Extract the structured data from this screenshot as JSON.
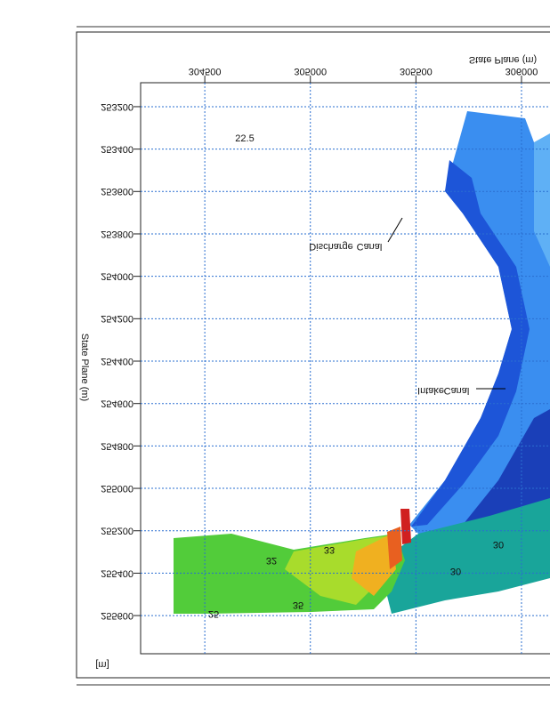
{
  "chart_data": {
    "type": "map",
    "x_label": "State Plane (m)",
    "y_label": "State Plane (m)",
    "unit_label": "[m]",
    "xlim": [
      304196,
      306135
    ],
    "xticks": [
      304500,
      305000,
      305500,
      306000
    ],
    "ylim": [
      253087,
      255780
    ],
    "yticks": [
      253200,
      253400,
      253600,
      253800,
      254000,
      254200,
      254400,
      254600,
      254800,
      255000,
      255200,
      255400,
      255600
    ],
    "grid": true,
    "annotations": [
      "22.5",
      "Discharge",
      "Canal",
      "Intake",
      "Canal"
    ],
    "contour_labels": [
      "30",
      "30",
      "25",
      "33",
      "32",
      "35"
    ]
  }
}
